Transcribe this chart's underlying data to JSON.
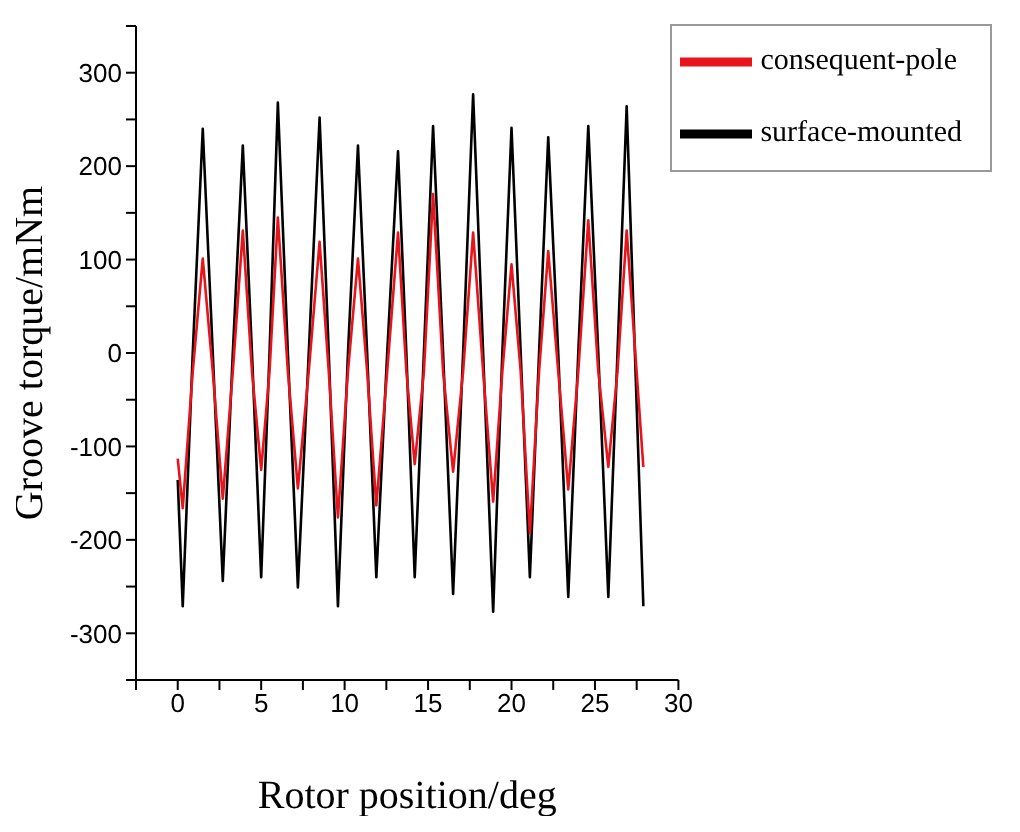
{
  "chart_data": {
    "type": "line",
    "xlabel": "Rotor position/deg",
    "ylabel": "Groove torque/mNm",
    "x": [
      0,
      0.3,
      0.9,
      1.5,
      2.1,
      2.7,
      3.3,
      3.9,
      4.45,
      5.0,
      5.5,
      6.0,
      6.6,
      7.2,
      7.85,
      8.5,
      9.05,
      9.6,
      10.2,
      10.8,
      11.35,
      11.9,
      12.55,
      13.2,
      13.7,
      14.2,
      14.75,
      15.3,
      15.9,
      16.5,
      17.1,
      17.7,
      18.3,
      18.9,
      19.45,
      20.0,
      20.55,
      21.1,
      21.65,
      22.2,
      22.8,
      23.4,
      24.0,
      24.6,
      25.2,
      25.8,
      26.35,
      26.9,
      27.9
    ],
    "series": [
      {
        "name": "surface-mounted",
        "color": "#000000",
        "values": [
          -136,
          -271,
          0,
          240,
          0,
          -244,
          0,
          222,
          0,
          -240,
          0,
          268,
          0,
          -251,
          0,
          252,
          0,
          -271,
          0,
          222,
          0,
          -240,
          0,
          216,
          0,
          -240,
          0,
          243,
          0,
          -258,
          0,
          277,
          0,
          -277,
          0,
          241,
          0,
          -240,
          0,
          231,
          0,
          -261,
          0,
          243,
          0,
          -261,
          0,
          264,
          -271
        ]
      },
      {
        "name": "consequent-pole",
        "color": "#e8141c",
        "values": [
          -113,
          -166,
          -20,
          101,
          -20,
          -156,
          -20,
          131,
          -20,
          -125,
          -20,
          145,
          -20,
          -145,
          -20,
          119,
          -20,
          -176,
          -20,
          101,
          -20,
          -163,
          -20,
          129,
          -20,
          -119,
          -20,
          170,
          -20,
          -127,
          -20,
          129,
          -20,
          -159,
          -20,
          95,
          -20,
          -193,
          -20,
          109,
          -20,
          -146,
          -20,
          142,
          -20,
          -122,
          -20,
          131,
          -122
        ]
      }
    ],
    "xlim": [
      -2.5,
      30
    ],
    "xticks": [
      {
        "value": -2.5,
        "label": null
      },
      0,
      {
        "value": 2.5,
        "label": null
      },
      5,
      {
        "value": 7.5,
        "label": null
      },
      10,
      {
        "value": 12.5,
        "label": null
      },
      15,
      {
        "value": 17.5,
        "label": null
      },
      20,
      {
        "value": 22.5,
        "label": null
      },
      25,
      {
        "value": 27.5,
        "label": null
      },
      30
    ],
    "ylim": [
      -350,
      350
    ],
    "yticks": [
      {
        "value": -350,
        "label": null
      },
      -300,
      {
        "value": -250,
        "label": null
      },
      -200,
      {
        "value": -150,
        "label": null
      },
      -100,
      {
        "value": -50,
        "label": null
      },
      0,
      {
        "value": 50,
        "label": null
      },
      100,
      {
        "value": 150,
        "label": null
      },
      200,
      {
        "value": 250,
        "label": null
      },
      300,
      {
        "value": 350,
        "label": null
      }
    ],
    "grid": false,
    "legend": "top right",
    "marker": "none",
    "line_style": "solid"
  }
}
